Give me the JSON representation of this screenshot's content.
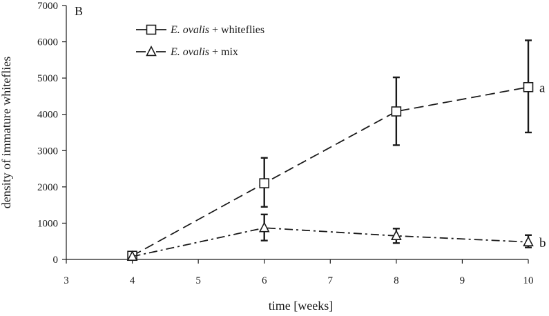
{
  "chart_data": {
    "type": "line",
    "panel_label": "B",
    "xlabel": "time [weeks]",
    "ylabel": "density of immature whiteflies",
    "xlim": [
      3,
      10
    ],
    "ylim": [
      0,
      7000
    ],
    "x_ticks": [
      3,
      4,
      5,
      6,
      7,
      8,
      9,
      10
    ],
    "y_ticks": [
      0,
      1000,
      2000,
      3000,
      4000,
      5000,
      6000,
      7000
    ],
    "legend_position": "top-left",
    "grid": false,
    "series": [
      {
        "name_italic": "E. ovalis",
        "name_rest": " + whiteflies",
        "marker": "square",
        "line_style": "dashed",
        "color": "#1a1a1a",
        "x": [
          4,
          6,
          8,
          10
        ],
        "y": [
          100,
          2100,
          4080,
          4750
        ],
        "err_low": [
          100,
          1450,
          3150,
          3500
        ],
        "err_high": [
          100,
          2800,
          5020,
          6040
        ],
        "end_label": "a"
      },
      {
        "name_italic": "E. ovalis",
        "name_rest": " + mix",
        "marker": "triangle",
        "line_style": "dash-dot",
        "color": "#1a1a1a",
        "x": [
          4,
          6,
          8,
          10
        ],
        "y": [
          80,
          870,
          650,
          480
        ],
        "err_low": [
          80,
          520,
          450,
          330
        ],
        "err_high": [
          80,
          1240,
          850,
          670
        ],
        "end_label": "b"
      }
    ]
  }
}
